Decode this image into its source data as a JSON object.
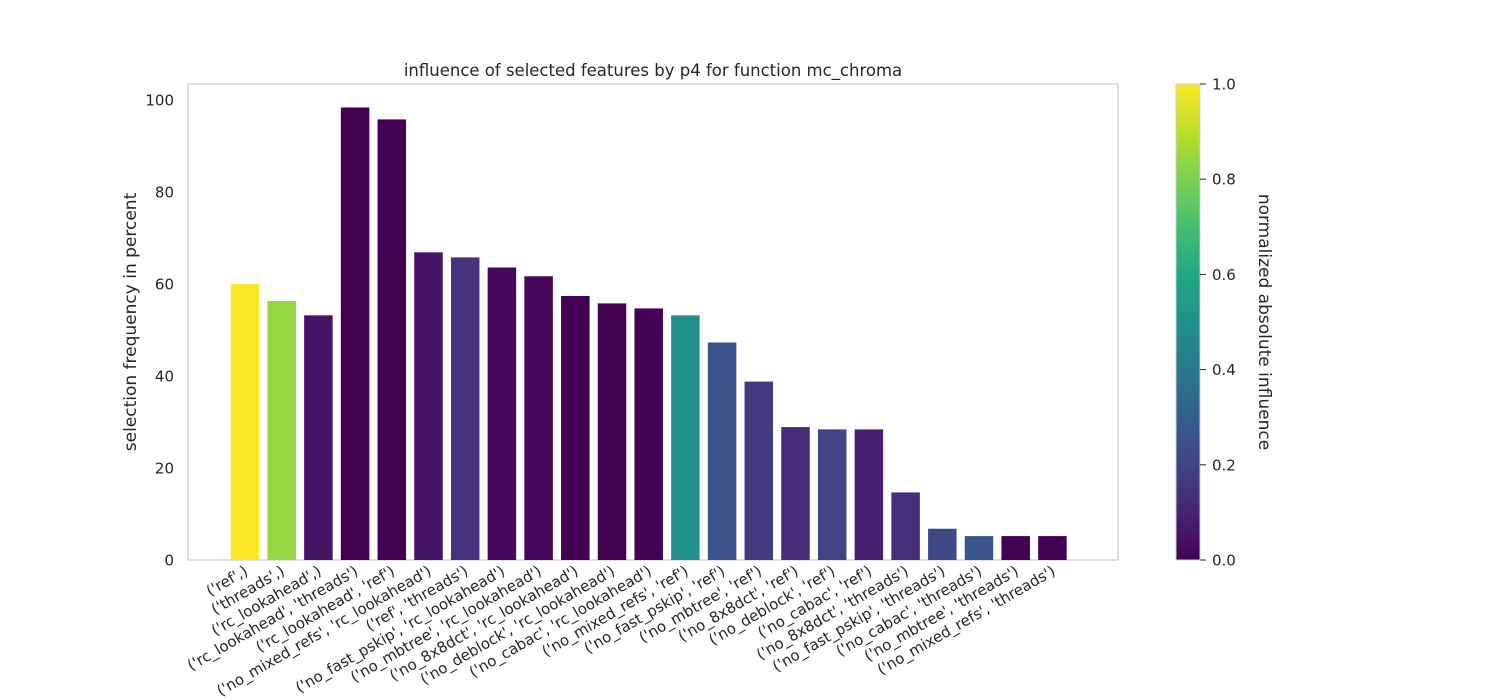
{
  "chart_data": {
    "type": "bar",
    "title": "influence of selected features by p4 for function mc_chroma",
    "xlabel": "",
    "ylabel": "selection frequency in percent",
    "ylim": [
      0,
      103.5
    ],
    "yticks": [
      0,
      20,
      40,
      60,
      80,
      100
    ],
    "grid": false,
    "categories": [
      "('ref',)",
      "('threads',)",
      "('rc_lookahead',)",
      "('rc_lookahead', 'threads')",
      "('rc_lookahead', 'ref')",
      "('no_mixed_refs', 'rc_lookahead')",
      "('ref', 'threads')",
      "('no_fast_pskip', 'rc_lookahead')",
      "('no_mbtree', 'rc_lookahead')",
      "('no_8x8dct', 'rc_lookahead')",
      "('no_deblock', 'rc_lookahead')",
      "('no_cabac', 'rc_lookahead')",
      "('no_mixed_refs', 'ref')",
      "('no_fast_pskip', 'ref')",
      "('no_mbtree', 'ref')",
      "('no_8x8dct', 'ref')",
      "('no_deblock', 'ref')",
      "('no_cabac', 'ref')",
      "('no_8x8dct', 'threads')",
      "('no_fast_pskip', 'threads')",
      "('no_cabac', 'threads')",
      "('no_mbtree', 'threads')",
      "('no_mixed_refs', 'threads')"
    ],
    "values": [
      60,
      56.3,
      53.2,
      98.4,
      95.8,
      66.9,
      65.8,
      63.6,
      61.7,
      57.4,
      55.8,
      54.7,
      53.2,
      47.3,
      38.8,
      28.9,
      28.4,
      28.4,
      14.7,
      6.8,
      5.2,
      5.2,
      5.2
    ],
    "influence": [
      1.0,
      0.84,
      0.05,
      0.0,
      0.0,
      0.05,
      0.15,
      0.02,
      0.02,
      0.0,
      0.0,
      0.0,
      0.5,
      0.26,
      0.17,
      0.12,
      0.2,
      0.08,
      0.13,
      0.22,
      0.27,
      0.0,
      0.0
    ],
    "colorbar": {
      "label": "normalized absolute influence",
      "colormap": "viridis",
      "range": [
        0.0,
        1.0
      ],
      "ticks": [
        "0.0",
        "0.2",
        "0.4",
        "0.6",
        "0.8",
        "1.0"
      ]
    }
  }
}
